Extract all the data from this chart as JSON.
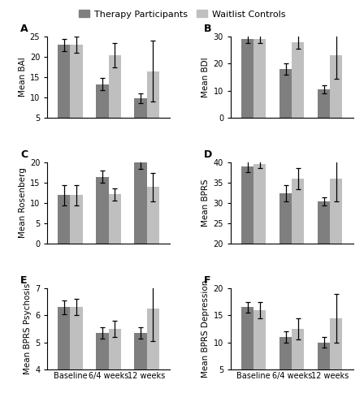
{
  "panels": [
    {
      "label": "A",
      "ylabel": "Mean BAI",
      "ylim": [
        5,
        25
      ],
      "yticks": [
        5,
        10,
        15,
        20,
        25
      ],
      "therapy": [
        23.0,
        13.3,
        9.8
      ],
      "waitlist": [
        23.0,
        20.5,
        16.5
      ],
      "therapy_ci": [
        1.5,
        1.5,
        1.2
      ],
      "waitlist_ci": [
        2.0,
        3.0,
        7.5
      ]
    },
    {
      "label": "B",
      "ylabel": "Mean BDI",
      "ylim": [
        0,
        30
      ],
      "yticks": [
        0,
        10,
        20,
        30
      ],
      "therapy": [
        29.0,
        18.0,
        10.5
      ],
      "waitlist": [
        29.0,
        28.0,
        23.0
      ],
      "therapy_ci": [
        1.5,
        2.0,
        1.5
      ],
      "waitlist_ci": [
        1.5,
        2.5,
        8.5
      ]
    },
    {
      "label": "C",
      "ylabel": "Mean Rosenberg",
      "ylim": [
        0,
        20
      ],
      "yticks": [
        0,
        5,
        10,
        15,
        20
      ],
      "therapy": [
        12.0,
        16.5,
        20.0
      ],
      "waitlist": [
        12.0,
        12.2,
        14.0
      ],
      "therapy_ci": [
        2.5,
        1.5,
        1.5
      ],
      "waitlist_ci": [
        2.5,
        1.5,
        3.5
      ]
    },
    {
      "label": "D",
      "ylabel": "Mean BPRS",
      "ylim": [
        20,
        40
      ],
      "yticks": [
        20,
        25,
        30,
        35,
        40
      ],
      "therapy": [
        39.0,
        32.5,
        30.5
      ],
      "waitlist": [
        39.5,
        36.0,
        36.0
      ],
      "therapy_ci": [
        1.5,
        2.0,
        1.0
      ],
      "waitlist_ci": [
        1.0,
        2.5,
        5.5
      ]
    },
    {
      "label": "E",
      "ylabel": "Mean BPRS Psychosis",
      "ylim": [
        4,
        7
      ],
      "yticks": [
        4,
        5,
        6,
        7
      ],
      "therapy": [
        6.3,
        5.35,
        5.35
      ],
      "waitlist": [
        6.3,
        5.5,
        6.25
      ],
      "therapy_ci": [
        0.25,
        0.2,
        0.2
      ],
      "waitlist_ci": [
        0.3,
        0.3,
        1.2
      ]
    },
    {
      "label": "F",
      "ylabel": "Mean BPRS Depression",
      "ylim": [
        5,
        20
      ],
      "yticks": [
        5,
        10,
        15,
        20
      ],
      "therapy": [
        16.5,
        11.0,
        10.0
      ],
      "waitlist": [
        16.0,
        12.5,
        14.5
      ],
      "therapy_ci": [
        1.0,
        1.0,
        1.0
      ],
      "waitlist_ci": [
        1.5,
        2.0,
        4.5
      ]
    }
  ],
  "xtick_labels": [
    "Baseline",
    "6/4 weeks",
    "12 weeks"
  ],
  "therapy_color": "#7f7f7f",
  "waitlist_color": "#bfbfbf",
  "bar_width": 0.32,
  "legend_therapy": "Therapy Participants",
  "legend_waitlist": "Waitlist Controls",
  "title_fontsize": 9,
  "label_fontsize": 7.5,
  "tick_fontsize": 7,
  "legend_fontsize": 8
}
